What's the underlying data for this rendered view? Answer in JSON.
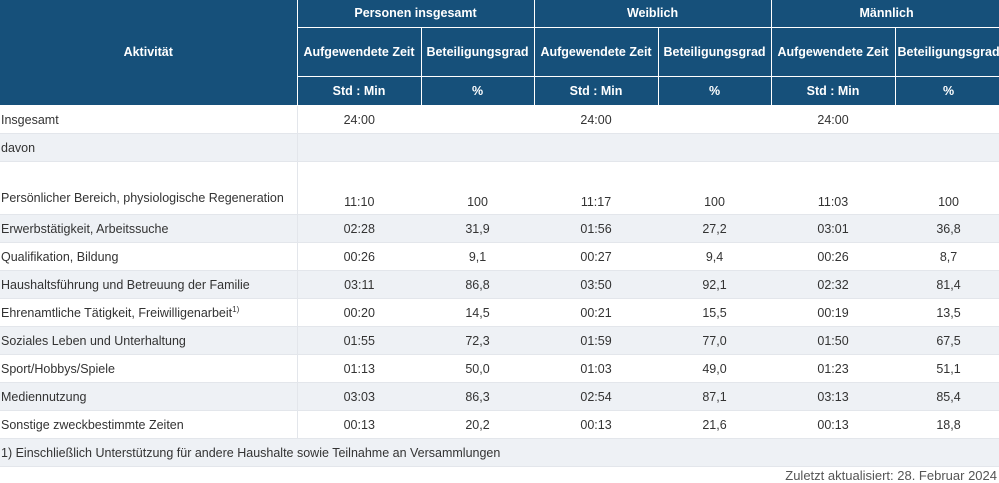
{
  "headers": {
    "activity": "Aktivität",
    "groups": [
      "Personen insgesamt",
      "Weiblich",
      "Männlich"
    ],
    "time_col": "Aufgewendete Zeit",
    "share_col": "Beteiligungsgrad",
    "time_unit": "Std : Min",
    "share_unit": "%"
  },
  "rows": [
    {
      "label": "Insgesamt",
      "values": [
        "24:00",
        "",
        "24:00",
        "",
        "24:00",
        ""
      ]
    },
    {
      "label": "davon",
      "values": [
        "",
        "",
        "",
        "",
        "",
        ""
      ]
    },
    {
      "label": "Persönlicher Bereich, physiologische Regeneration",
      "values": [
        "11:10",
        "100",
        "11:17",
        "100",
        "11:03",
        "100"
      ]
    },
    {
      "label": "Erwerbstätigkeit, Arbeitssuche",
      "values": [
        "02:28",
        "31,9",
        "01:56",
        "27,2",
        "03:01",
        "36,8"
      ]
    },
    {
      "label": "Qualifikation, Bildung",
      "values": [
        "00:26",
        "9,1",
        "00:27",
        "9,4",
        "00:26",
        "8,7"
      ]
    },
    {
      "label": "Haushaltsführung und Betreuung der Familie",
      "values": [
        "03:11",
        "86,8",
        "03:50",
        "92,1",
        "02:32",
        "81,4"
      ]
    },
    {
      "label": "Ehrenamtliche Tätigkeit, Freiwilligenarbeit",
      "sup": "1)",
      "values": [
        "00:20",
        "14,5",
        "00:21",
        "15,5",
        "00:19",
        "13,5"
      ]
    },
    {
      "label": "Soziales Leben und Unterhaltung",
      "values": [
        "01:55",
        "72,3",
        "01:59",
        "77,0",
        "01:50",
        "67,5"
      ]
    },
    {
      "label": "Sport/Hobbys/Spiele",
      "values": [
        "01:13",
        "50,0",
        "01:03",
        "49,0",
        "01:23",
        "51,1"
      ]
    },
    {
      "label": "Mediennutzung",
      "values": [
        "03:03",
        "86,3",
        "02:54",
        "87,1",
        "03:13",
        "85,4"
      ]
    },
    {
      "label": "Sonstige zweckbestimmte Zeiten",
      "values": [
        "00:13",
        "20,2",
        "00:13",
        "21,6",
        "00:13",
        "18,8"
      ]
    }
  ],
  "footnote": "1) Einschließlich Unterstützung für andere Haushalte sowie Teilnahme an Versammlungen",
  "updated": "Zuletzt aktualisiert: 28. Februar 2024"
}
